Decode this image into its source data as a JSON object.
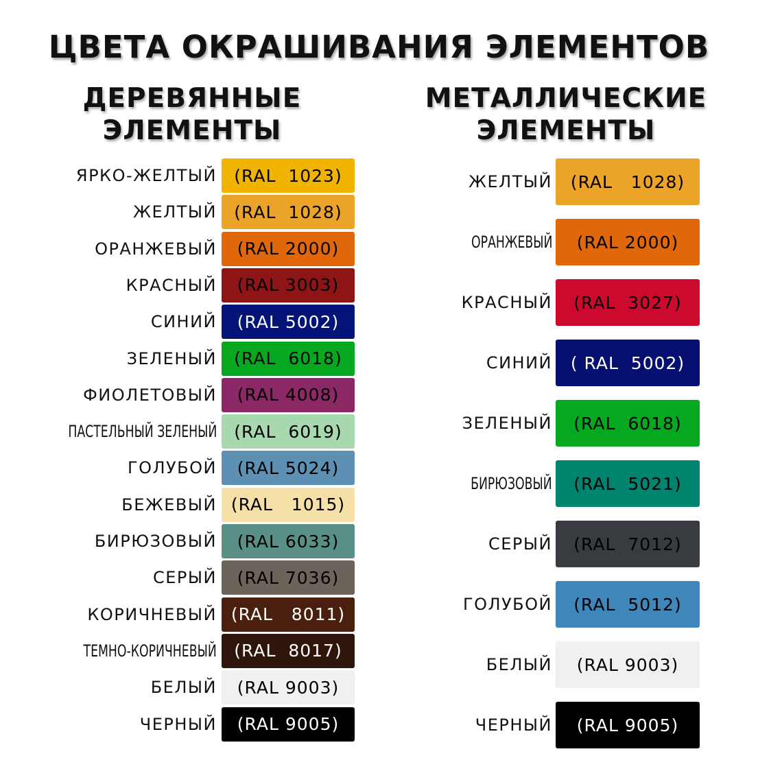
{
  "title": "ЦВЕТА ОКРАШИВАНИЯ ЭЛЕМЕНТОВ",
  "wood": {
    "heading": [
      "ДЕРЕВЯННЫЕ",
      "ЭЛЕМЕНТЫ"
    ],
    "items": [
      {
        "name": "ЯРКО-ЖЕЛТЫЙ",
        "code": "(RAL  1023)",
        "color": "#f0b400",
        "text_color": "#000000"
      },
      {
        "name": "ЖЕЛТЫЙ",
        "code": "(RAL  1028)",
        "color": "#eba428",
        "text_color": "#000000"
      },
      {
        "name": "ОРАНЖЕВЫЙ",
        "code": "(RAL 2000)",
        "color": "#e0670a",
        "text_color": "#000000"
      },
      {
        "name": "КРАСНЫЙ",
        "code": "(RAL 3003)",
        "color": "#8e1515",
        "text_color": "#000000"
      },
      {
        "name": "СИНИЙ",
        "code": "(RAL 5002)",
        "color": "#051478",
        "text_color": "#ffffff"
      },
      {
        "name": "ЗЕЛЕНЫЙ",
        "code": "(RAL  6018)",
        "color": "#06a820",
        "text_color": "#000000"
      },
      {
        "name": "ФИОЛЕТОВЫЙ",
        "code": "(RAL 4008)",
        "color": "#8c2865",
        "text_color": "#000000"
      },
      {
        "name": "ПАСТЕЛЬНЫЙ ЗЕЛЕНЫЙ",
        "code": "(RAL  6019)",
        "color": "#a8d8ae",
        "text_color": "#000000"
      },
      {
        "name": "ГОЛУБОЙ",
        "code": "(RAL 5024)",
        "color": "#5e90b4",
        "text_color": "#000000"
      },
      {
        "name": "БЕЖЕВЫЙ",
        "code": "(RAL   1015)",
        "color": "#f5e1a8",
        "text_color": "#000000"
      },
      {
        "name": "БИРЮЗОВЫЙ",
        "code": "(RAL 6033)",
        "color": "#5a8f86",
        "text_color": "#000000"
      },
      {
        "name": "СЕРЫЙ",
        "code": "(RAL 7036)",
        "color": "#6c635b",
        "text_color": "#000000"
      },
      {
        "name": "КОРИЧНЕВЫЙ",
        "code": "(RAL   8011)",
        "color": "#4a1f0e",
        "text_color": "#ffffff"
      },
      {
        "name": "ТЕМНО-КОРИЧНЕВЫЙ",
        "code": "(RAL  8017)",
        "color": "#2f150b",
        "text_color": "#ffffff"
      },
      {
        "name": "БЕЛЫЙ",
        "code": "(RAL 9003)",
        "color": "#f1eff0",
        "text_color": "#000000"
      },
      {
        "name": "ЧЕРНЫЙ",
        "code": "(RAL 9005)",
        "color": "#000000",
        "text_color": "#ffffff"
      }
    ]
  },
  "metal": {
    "heading": [
      "МЕТАЛЛИЧЕСКИЕ",
      "ЭЛЕМЕНТЫ"
    ],
    "items": [
      {
        "name": "ЖЕЛТЫЙ",
        "code": "(RAL   1028)",
        "color": "#eba428",
        "text_color": "#000000"
      },
      {
        "name": "ОРАНЖЕВЫЙ",
        "code": "(RAL 2000)",
        "color": "#e0670a",
        "text_color": "#000000"
      },
      {
        "name": "КРАСНЫЙ",
        "code": "(RAL  3027)",
        "color": "#cc0a2e",
        "text_color": "#000000"
      },
      {
        "name": "СИНИЙ",
        "code": "( RAL  5002)",
        "color": "#051070",
        "text_color": "#ffffff"
      },
      {
        "name": "ЗЕЛЕНЫЙ",
        "code": "(RAL  6018)",
        "color": "#06a820",
        "text_color": "#000000"
      },
      {
        "name": "БИРЮЗОВЫЙ",
        "code": "(RAL  5021)",
        "color": "#00836f",
        "text_color": "#000000"
      },
      {
        "name": "СЕРЫЙ",
        "code": "(RAL  7012)",
        "color": "#383c40",
        "text_color": "#000000"
      },
      {
        "name": "ГОЛУБОЙ",
        "code": "(RAL  5012)",
        "color": "#3f86ba",
        "text_color": "#000000"
      },
      {
        "name": "БЕЛЫЙ",
        "code": "(RAL 9003)",
        "color": "#f1eff0",
        "text_color": "#000000"
      },
      {
        "name": "ЧЕРНЫЙ",
        "code": "(RAL 9005)",
        "color": "#000000",
        "text_color": "#ffffff"
      }
    ]
  }
}
